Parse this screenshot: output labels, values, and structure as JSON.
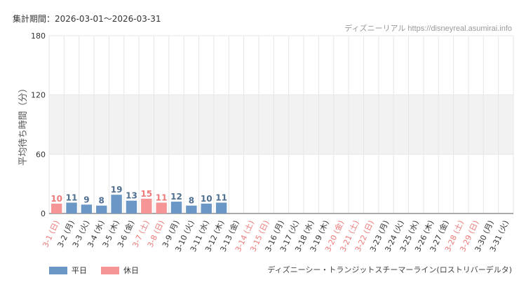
{
  "header": {
    "period_label": "集計期間：2026-03-01～2026-03-31",
    "credit": "ディズニーリアル https://disneyreal.asumirai.info"
  },
  "legend": {
    "weekday_label": "平日",
    "holiday_label": "休日"
  },
  "footer": {
    "attraction_name": "ディズニーシー・トランジットスチーマーライン(ロストリバーデルタ)"
  },
  "colors": {
    "weekday": "#6a97c5",
    "holiday": "#f59595",
    "weekday_label": "#4f6f90",
    "holiday_label": "#ee7a7a",
    "grid": "#e6e6e6",
    "band": "#f2f2f2"
  },
  "chart_data": {
    "type": "bar",
    "ylabel": "平均待ち時間（分）",
    "ylim": [
      0,
      180
    ],
    "yticks": [
      "0",
      "60",
      "120",
      "180"
    ],
    "grid": true,
    "legend_position": "bottom-left",
    "categories": [
      "3-1 (日)",
      "3-2 (月)",
      "3-3 (火)",
      "3-4 (水)",
      "3-5 (木)",
      "3-6 (金)",
      "3-7 (土)",
      "3-8 (日)",
      "3-9 (月)",
      "3-10 (火)",
      "3-11 (水)",
      "3-12 (木)",
      "3-13 (金)",
      "3-14 (土)",
      "3-15 (日)",
      "3-16 (月)",
      "3-17 (火)",
      "3-18 (水)",
      "3-19 (木)",
      "3-20 (金)",
      "3-21 (土)",
      "3-22 (日)",
      "3-23 (月)",
      "3-24 (火)",
      "3-25 (水)",
      "3-26 (木)",
      "3-27 (金)",
      "3-28 (土)",
      "3-29 (日)",
      "3-30 (月)",
      "3-31 (火)"
    ],
    "day_types": [
      "holiday",
      "weekday",
      "weekday",
      "weekday",
      "weekday",
      "weekday",
      "holiday",
      "holiday",
      "weekday",
      "weekday",
      "weekday",
      "weekday",
      "weekday",
      "holiday",
      "holiday",
      "weekday",
      "weekday",
      "weekday",
      "weekday",
      "holiday",
      "holiday",
      "holiday",
      "weekday",
      "weekday",
      "weekday",
      "weekday",
      "weekday",
      "holiday",
      "holiday",
      "weekday",
      "weekday"
    ],
    "values": [
      10,
      11,
      9,
      8,
      19,
      13,
      15,
      11,
      12,
      8,
      10,
      11,
      null,
      null,
      null,
      null,
      null,
      null,
      null,
      null,
      null,
      null,
      null,
      null,
      null,
      null,
      null,
      null,
      null,
      null,
      null
    ]
  }
}
